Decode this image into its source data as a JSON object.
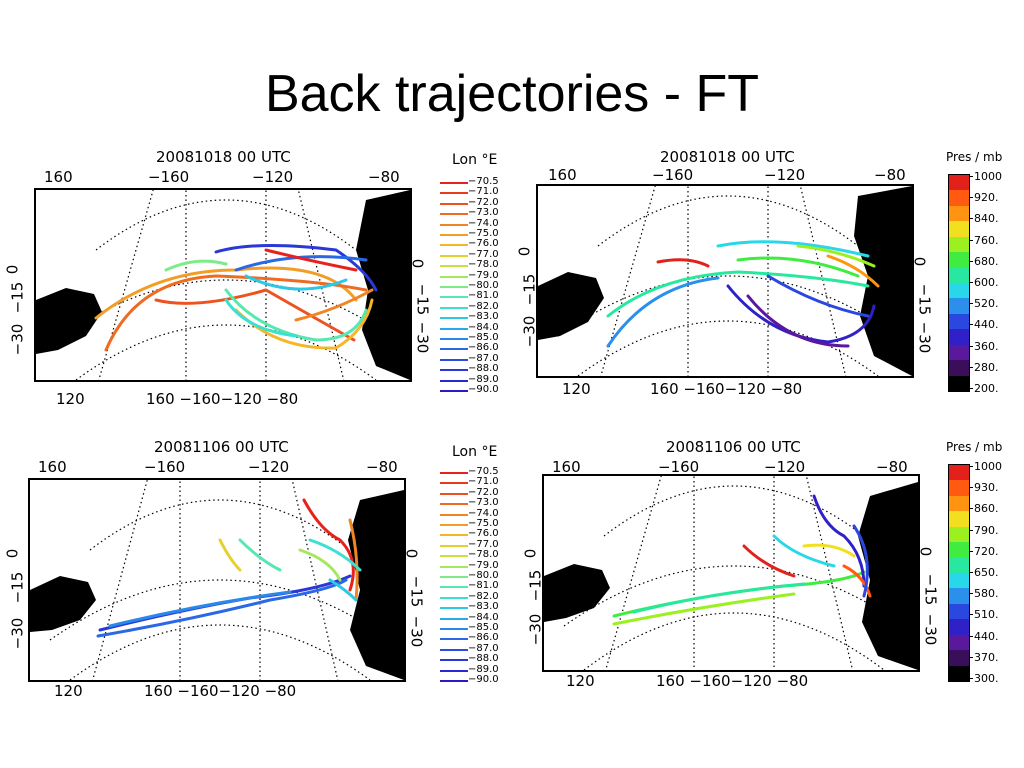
{
  "slide": {
    "title": "Back trajectories - FT"
  },
  "panels": [
    {
      "date": "20081018  00 UTC",
      "top_ticks": [
        "160",
        "−160",
        "−120",
        "−80"
      ],
      "left_ticks": [
        "0",
        "−15",
        "−30"
      ],
      "right_ticks": [
        "0",
        "−15",
        "−30"
      ],
      "bottom_ticks": [
        "120",
        "160 −160−120 −80"
      ]
    },
    {
      "date": "20081018  00 UTC",
      "top_ticks": [
        "160",
        "−160",
        "−120",
        "−80"
      ],
      "left_ticks": [
        "0",
        "−15",
        "−30"
      ],
      "right_ticks": [
        "0",
        "−15",
        "−30"
      ],
      "bottom_ticks": [
        "120",
        "160 −160−120 −80"
      ]
    },
    {
      "date": "20081106  00 UTC",
      "top_ticks": [
        "160",
        "−160",
        "−120",
        "−80"
      ],
      "left_ticks": [
        "0",
        "−15",
        "−30"
      ],
      "right_ticks": [
        "0",
        "−15",
        "−30"
      ],
      "bottom_ticks": [
        "120",
        "160 −160−120 −80"
      ]
    },
    {
      "date": "20081106  00 UTC",
      "top_ticks": [
        "160",
        "−160",
        "−120",
        "−80"
      ],
      "left_ticks": [
        "0",
        "−15",
        "−30"
      ],
      "right_ticks": [
        "0",
        "−15",
        "−30"
      ],
      "bottom_ticks": [
        "120",
        "160 −160−120 −80"
      ]
    }
  ],
  "lon_legend": {
    "title": "Lon °E",
    "entries": [
      "−70.5",
      "−71.0",
      "−72.0",
      "−73.0",
      "−74.0",
      "−75.0",
      "−76.0",
      "−77.0",
      "−78.0",
      "−79.0",
      "−80.0",
      "−81.0",
      "−82.0",
      "−83.0",
      "−84.0",
      "−85.0",
      "−86.0",
      "−87.0",
      "−88.0",
      "−89.0",
      "−90.0"
    ],
    "colors": [
      "#e8211c",
      "#ea3a1e",
      "#ec5320",
      "#ee6c22",
      "#f08524",
      "#f29e26",
      "#f4b728",
      "#e6d030",
      "#c8e040",
      "#a4e860",
      "#7ceb88",
      "#56e8b0",
      "#3ae0d0",
      "#2cc8e8",
      "#2aa8ec",
      "#2a88ea",
      "#2a68e6",
      "#2a4ce0",
      "#2a38d8",
      "#2a28d0",
      "#2a1ac6"
    ]
  },
  "pres_legends": [
    {
      "title": "Pres  /  mb",
      "labels": [
        "1000",
        "920.",
        "840.",
        "760.",
        "680.",
        "600.",
        "520.",
        "440.",
        "360.",
        "280.",
        "200."
      ],
      "colors": [
        "#e2211c",
        "#ff5a10",
        "#ff9410",
        "#f2e020",
        "#9cf020",
        "#40ec40",
        "#28e8a0",
        "#28d8e8",
        "#2a90ec",
        "#2a48e0",
        "#3020c8",
        "#5a189c",
        "#3a0e5a",
        "#000000"
      ]
    },
    {
      "title": "Pres  /  mb",
      "labels": [
        "1000",
        "930.",
        "860.",
        "790.",
        "720.",
        "650.",
        "580.",
        "510.",
        "440.",
        "370.",
        "300."
      ],
      "colors": [
        "#e2211c",
        "#ff5a10",
        "#ff9410",
        "#f2e020",
        "#9cf020",
        "#40ec40",
        "#28e8a0",
        "#28d8e8",
        "#2a90ec",
        "#2a48e0",
        "#3020c8",
        "#5a189c",
        "#3a0e5a",
        "#000000"
      ]
    }
  ]
}
